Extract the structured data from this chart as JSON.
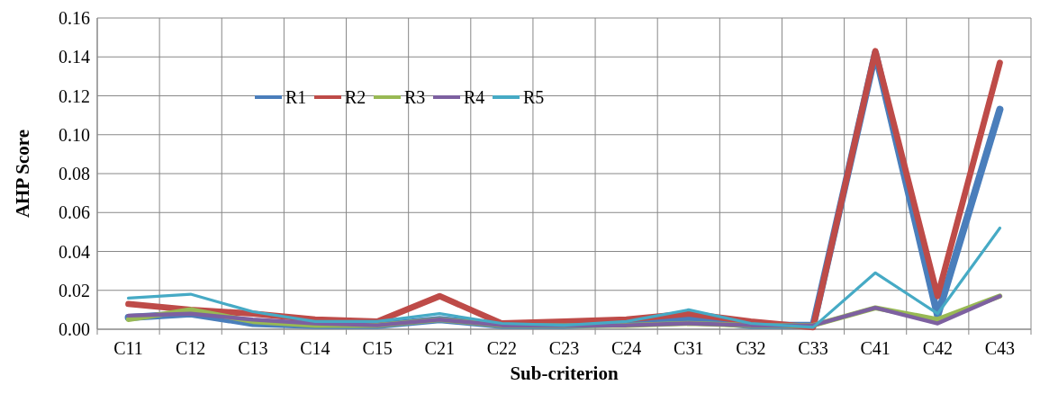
{
  "chart_data": {
    "type": "line",
    "xlabel": "Sub-criterion",
    "ylabel": "AHP Score",
    "categories": [
      "C11",
      "C12",
      "C13",
      "C14",
      "C15",
      "C21",
      "C22",
      "C23",
      "C24",
      "C31",
      "C32",
      "C33",
      "C41",
      "C42",
      "C43"
    ],
    "series": [
      {
        "name": "R1",
        "color": "#4a7ebb",
        "values": [
          0.006,
          0.008,
          0.003,
          0.002,
          0.002,
          0.005,
          0.002,
          0.002,
          0.003,
          0.005,
          0.002,
          0.002,
          0.142,
          0.007,
          0.113
        ]
      },
      {
        "name": "R2",
        "color": "#be4b48",
        "values": [
          0.013,
          0.01,
          0.008,
          0.005,
          0.004,
          0.017,
          0.003,
          0.004,
          0.005,
          0.008,
          0.004,
          0.001,
          0.143,
          0.017,
          0.137
        ]
      },
      {
        "name": "R3",
        "color": "#98b954",
        "values": [
          0.005,
          0.01,
          0.004,
          0.002,
          0.002,
          0.005,
          0.002,
          0.002,
          0.002,
          0.003,
          0.002,
          0.002,
          0.011,
          0.005,
          0.017
        ]
      },
      {
        "name": "R4",
        "color": "#7d60a0",
        "values": [
          0.007,
          0.008,
          0.005,
          0.003,
          0.002,
          0.005,
          0.002,
          0.002,
          0.002,
          0.003,
          0.002,
          0.002,
          0.011,
          0.003,
          0.017
        ]
      },
      {
        "name": "R5",
        "color": "#46aac5",
        "values": [
          0.016,
          0.018,
          0.009,
          0.004,
          0.004,
          0.008,
          0.003,
          0.002,
          0.004,
          0.01,
          0.003,
          0.001,
          0.029,
          0.008,
          0.052
        ]
      }
    ],
    "ylim": [
      0,
      0.16
    ],
    "yticks": [
      {
        "value": 0,
        "label": "0.00"
      },
      {
        "value": 0.02,
        "label": "0.02"
      },
      {
        "value": 0.04,
        "label": "0.04"
      },
      {
        "value": 0.06,
        "label": "0.06"
      },
      {
        "value": 0.08,
        "label": "0.08"
      },
      {
        "value": 0.1,
        "label": "0.10"
      },
      {
        "value": 0.12,
        "label": "0.12"
      },
      {
        "value": 0.14,
        "label": "0.14"
      },
      {
        "value": 0.16,
        "label": "0.16"
      }
    ],
    "grid": true,
    "legend": "top left",
    "marker": "none",
    "line_style": "solid"
  }
}
